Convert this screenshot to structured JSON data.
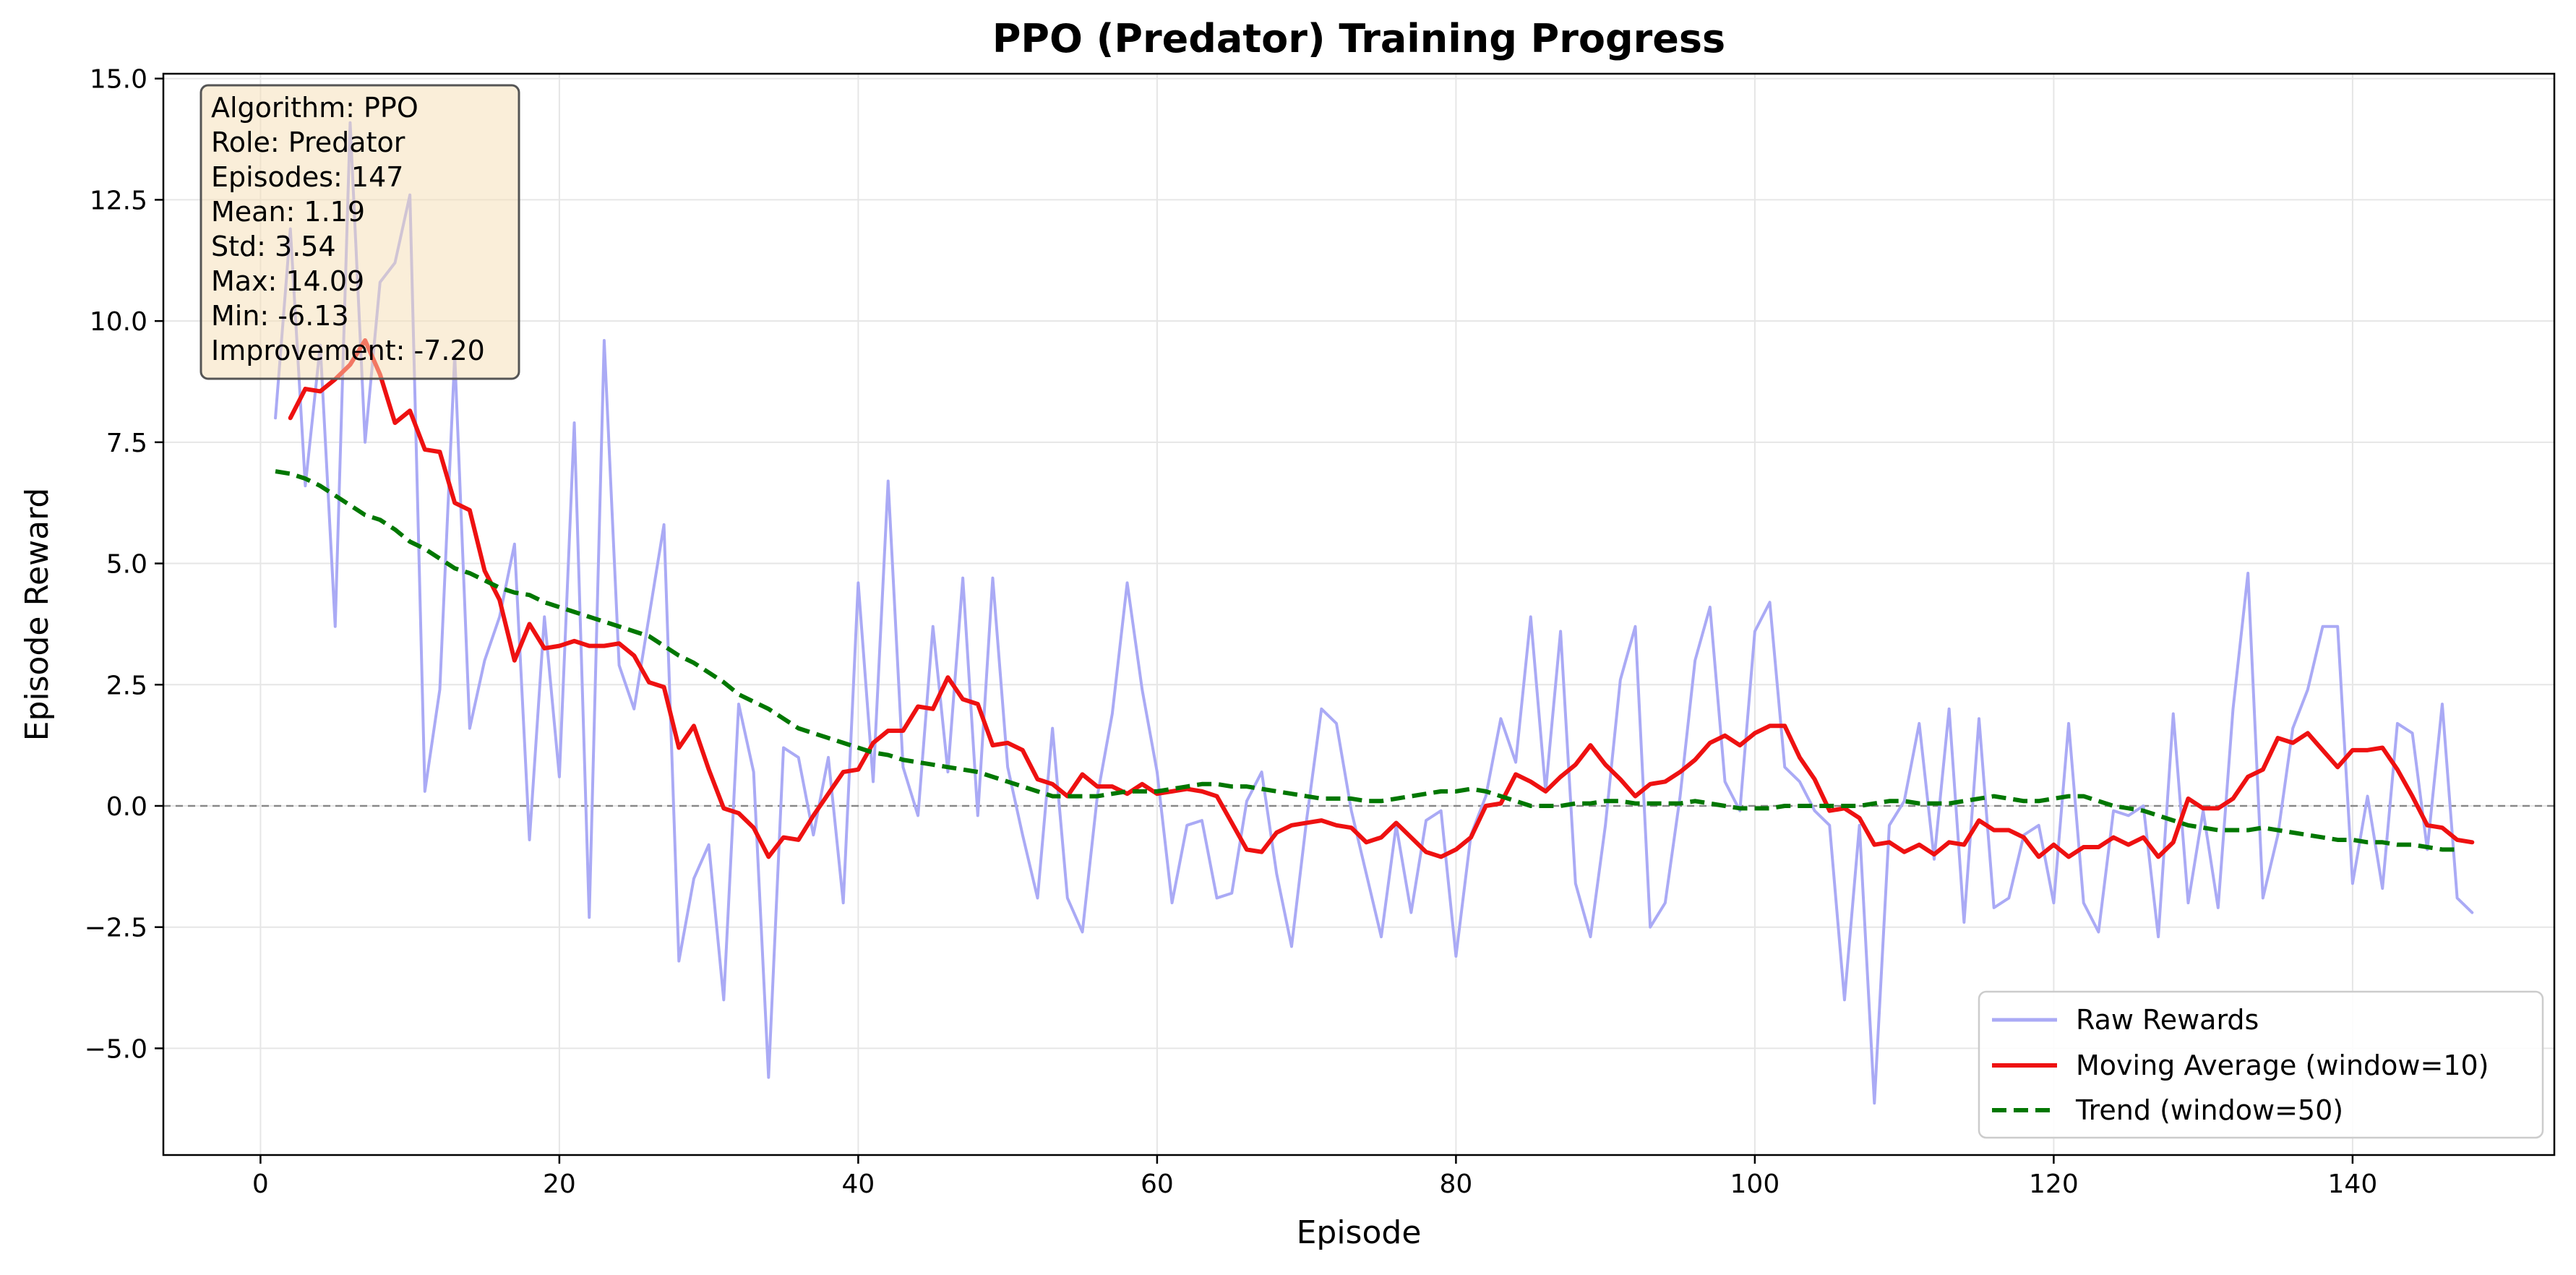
{
  "chart_data": {
    "type": "line",
    "title": "PPO (Predator) Training Progress",
    "xlabel": "Episode",
    "ylabel": "Episode Reward",
    "xlim": [
      -6.5,
      153.5
    ],
    "ylim": [
      -7.2,
      15.1
    ],
    "x_ticks": [
      0,
      20,
      40,
      60,
      80,
      100,
      120,
      140
    ],
    "y_ticks": [
      -5.0,
      -2.5,
      0.0,
      2.5,
      5.0,
      7.5,
      10.0,
      12.5,
      15.0
    ],
    "x_tick_labels": [
      "0",
      "20",
      "40",
      "60",
      "80",
      "100",
      "120",
      "140"
    ],
    "y_tick_labels": [
      "−5.0",
      "−2.5",
      "0.0",
      "2.5",
      "5.0",
      "7.5",
      "10.0",
      "12.5",
      "15.0"
    ],
    "grid": true,
    "zero_line": 0,
    "legend_position": "lower-right",
    "series": [
      {
        "name": "Raw Rewards",
        "color": "#aaaaf5",
        "style": "solid",
        "x_start": 1,
        "values": [
          8.0,
          11.9,
          6.6,
          9.5,
          3.7,
          14.09,
          7.5,
          10.8,
          11.2,
          12.6,
          0.3,
          2.4,
          9.3,
          1.6,
          3.0,
          3.9,
          5.4,
          -0.7,
          3.9,
          0.6,
          7.9,
          -2.3,
          9.6,
          2.9,
          2.0,
          3.9,
          5.8,
          -3.2,
          -1.5,
          -0.8,
          -4.0,
          2.1,
          0.7,
          -5.6,
          1.2,
          1.0,
          -0.6,
          1.0,
          -2.0,
          4.6,
          0.5,
          6.7,
          0.8,
          -0.2,
          3.7,
          0.7,
          4.7,
          -0.2,
          4.7,
          0.8,
          -0.6,
          -1.9,
          1.6,
          -1.9,
          -2.6,
          0.2,
          1.9,
          4.6,
          2.4,
          0.7,
          -2.0,
          -0.4,
          -0.3,
          -1.9,
          -1.8,
          0.1,
          0.7,
          -1.4,
          -2.9,
          -0.3,
          2.0,
          1.7,
          -0.1,
          -1.4,
          -2.7,
          -0.4,
          -2.2,
          -0.3,
          -0.1,
          -3.1,
          -0.6,
          0.2,
          1.8,
          0.9,
          3.9,
          0.3,
          3.6,
          -1.6,
          -2.7,
          -0.4,
          2.6,
          3.7,
          -2.5,
          -2.0,
          0.2,
          3.0,
          4.1,
          0.5,
          -0.1,
          3.6,
          4.2,
          0.8,
          0.5,
          -0.1,
          -0.4,
          -4.0,
          -0.4,
          -6.13,
          -0.4,
          0.1,
          1.7,
          -1.1,
          2.0,
          -2.4,
          1.8,
          -2.1,
          -1.9,
          -0.6,
          -0.4,
          -2.0,
          1.7,
          -2.0,
          -2.6,
          -0.1,
          -0.2,
          0.0,
          -2.7,
          1.9,
          -2.0,
          -0.1,
          -2.1,
          2.0,
          4.8,
          -1.9,
          -0.6,
          1.6,
          2.4,
          3.7,
          3.7,
          -1.6,
          0.2,
          -1.7,
          1.7,
          1.5,
          -0.9,
          2.1,
          -1.9,
          -2.2
        ]
      },
      {
        "name": "Moving Average (window=10)",
        "color": "#ee1111",
        "style": "solid",
        "x_start": 2,
        "values": [
          8.0,
          8.6,
          8.55,
          8.8,
          9.1,
          9.6,
          8.9,
          7.9,
          8.15,
          7.35,
          7.3,
          6.25,
          6.1,
          4.85,
          4.25,
          3.0,
          3.75,
          3.25,
          3.3,
          3.4,
          3.3,
          3.3,
          3.35,
          3.1,
          2.55,
          2.45,
          1.2,
          1.65,
          0.75,
          -0.05,
          -0.15,
          -0.45,
          -1.05,
          -0.65,
          -0.7,
          -0.2,
          0.25,
          0.7,
          0.75,
          1.3,
          1.55,
          1.55,
          2.05,
          2.0,
          2.65,
          2.2,
          2.1,
          1.25,
          1.3,
          1.15,
          0.55,
          0.45,
          0.2,
          0.65,
          0.4,
          0.4,
          0.25,
          0.45,
          0.25,
          0.3,
          0.35,
          0.3,
          0.2,
          -0.35,
          -0.9,
          -0.95,
          -0.55,
          -0.4,
          -0.35,
          -0.3,
          -0.4,
          -0.45,
          -0.75,
          -0.65,
          -0.35,
          -0.65,
          -0.95,
          -1.05,
          -0.9,
          -0.65,
          0.0,
          0.05,
          0.65,
          0.5,
          0.3,
          0.6,
          0.85,
          1.25,
          0.85,
          0.55,
          0.2,
          0.45,
          0.5,
          0.7,
          0.95,
          1.3,
          1.45,
          1.25,
          1.5,
          1.65,
          1.65,
          1.0,
          0.55,
          -0.1,
          -0.05,
          -0.25,
          -0.8,
          -0.75,
          -0.95,
          -0.8,
          -1.0,
          -0.75,
          -0.8,
          -0.3,
          -0.5,
          -0.5,
          -0.65,
          -1.05,
          -0.8,
          -1.05,
          -0.85,
          -0.85,
          -0.65,
          -0.8,
          -0.65,
          -1.05,
          -0.75,
          0.15,
          -0.05,
          -0.05,
          0.15,
          0.6,
          0.75,
          1.4,
          1.3,
          1.5,
          1.15,
          0.8,
          1.15,
          1.15,
          1.2,
          0.75,
          0.2,
          -0.4,
          -0.45,
          -0.7,
          -0.75
        ]
      },
      {
        "name": "Trend (window=50)",
        "color": "#007700",
        "style": "dashed",
        "x_start": 1,
        "values": [
          6.9,
          6.85,
          6.75,
          6.6,
          6.4,
          6.2,
          6.0,
          5.9,
          5.7,
          5.45,
          5.3,
          5.1,
          4.9,
          4.8,
          4.65,
          4.5,
          4.4,
          4.35,
          4.2,
          4.1,
          4.0,
          3.9,
          3.8,
          3.7,
          3.6,
          3.5,
          3.3,
          3.1,
          2.95,
          2.75,
          2.55,
          2.3,
          2.15,
          2.0,
          1.8,
          1.6,
          1.5,
          1.4,
          1.3,
          1.2,
          1.1,
          1.05,
          0.95,
          0.9,
          0.85,
          0.8,
          0.75,
          0.7,
          0.6,
          0.5,
          0.4,
          0.3,
          0.2,
          0.2,
          0.2,
          0.2,
          0.25,
          0.3,
          0.3,
          0.3,
          0.35,
          0.4,
          0.45,
          0.45,
          0.4,
          0.4,
          0.35,
          0.3,
          0.25,
          0.2,
          0.15,
          0.15,
          0.15,
          0.1,
          0.1,
          0.15,
          0.2,
          0.25,
          0.3,
          0.3,
          0.35,
          0.3,
          0.2,
          0.1,
          0.0,
          0.0,
          0.0,
          0.05,
          0.05,
          0.1,
          0.1,
          0.05,
          0.05,
          0.05,
          0.05,
          0.1,
          0.05,
          0.0,
          -0.05,
          -0.05,
          -0.05,
          0.0,
          0.0,
          0.0,
          0.0,
          0.0,
          0.0,
          0.05,
          0.1,
          0.1,
          0.05,
          0.05,
          0.05,
          0.1,
          0.15,
          0.2,
          0.15,
          0.1,
          0.1,
          0.15,
          0.2,
          0.2,
          0.1,
          0.0,
          -0.05,
          -0.1,
          -0.2,
          -0.3,
          -0.4,
          -0.45,
          -0.5,
          -0.5,
          -0.5,
          -0.45,
          -0.5,
          -0.55,
          -0.6,
          -0.65,
          -0.7,
          -0.7,
          -0.75,
          -0.75,
          -0.8,
          -0.8,
          -0.85,
          -0.9,
          -0.9
        ]
      }
    ],
    "stats_box": {
      "lines": [
        "Algorithm: PPO",
        "Role: Predator",
        "Episodes: 147",
        "Mean: 1.19",
        "Std: 3.54",
        "Max: 14.09",
        "Min: -6.13",
        "Improvement: -7.20"
      ]
    }
  }
}
